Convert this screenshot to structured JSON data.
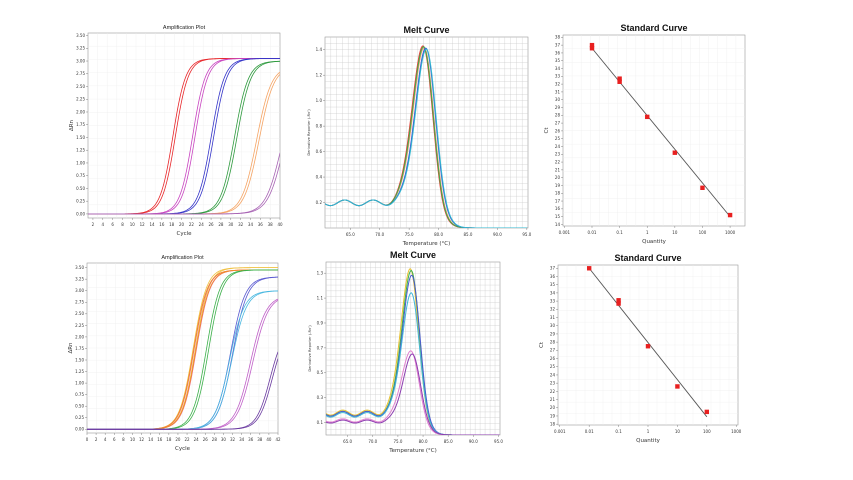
{
  "chart_data": [
    {
      "type": "line",
      "kind": "amplification",
      "title": "Amplification Plot",
      "xlabel": "Cycle",
      "ylabel": "ΔRn",
      "xlim": [
        1,
        40
      ],
      "ylim": [
        -0.08,
        3.55
      ],
      "xticks": [
        2,
        4,
        6,
        8,
        10,
        12,
        14,
        16,
        18,
        20,
        22,
        24,
        26,
        28,
        30,
        32,
        34,
        36,
        38,
        40
      ],
      "yticks": [
        0,
        0.25,
        0.5,
        0.75,
        1,
        1.25,
        1.5,
        1.75,
        2,
        2.25,
        2.5,
        2.75,
        3,
        3.25,
        3.5
      ],
      "ytick_labels": [
        "0.00",
        "0.25",
        "0.50",
        "0.75",
        "1.00",
        "1.25",
        "1.50",
        "1.75",
        "2.00",
        "2.25",
        "2.50",
        "2.75",
        "3.00",
        "3.25",
        "3.50"
      ],
      "grid": true,
      "series": [
        {
          "color": "#e8262a",
          "midpoint_cycle": 18.5,
          "plateau": 3.05,
          "slope": 1.3
        },
        {
          "color": "#c844c0",
          "midpoint_cycle": 22.5,
          "plateau": 3.05,
          "slope": 1.3
        },
        {
          "color": "#3434c8",
          "midpoint_cycle": 26.3,
          "plateau": 3.05,
          "slope": 1.35
        },
        {
          "color": "#2e9a3e",
          "midpoint_cycle": 31.0,
          "plateau": 3.0,
          "slope": 1.4
        },
        {
          "color": "#f5a464",
          "midpoint_cycle": 35.5,
          "plateau": 2.9,
          "slope": 1.5
        },
        {
          "color": "#a864b4",
          "midpoint_cycle": 40.5,
          "plateau": 2.6,
          "slope": 1.6
        }
      ]
    },
    {
      "type": "line",
      "kind": "melt",
      "title": "Melt Curve",
      "xlabel": "Temperature (°C)",
      "ylabel": "Derivative Reporter (-Rn')",
      "xlim": [
        60.7,
        95.2
      ],
      "ylim": [
        0,
        1.5
      ],
      "xticks": [
        65,
        70,
        75,
        80,
        85,
        90,
        95
      ],
      "xtick_labels": [
        "65.0",
        "70.0",
        "75.0",
        "80.0",
        "85.0",
        "90.0",
        "95.0"
      ],
      "yticks": [
        0.2,
        0.4,
        0.6,
        0.8,
        1.0,
        1.2,
        1.4
      ],
      "ytick_labels": [
        "0.2",
        "0.4",
        "0.6",
        "0.8",
        "1.0",
        "1.2",
        "1.4"
      ],
      "grid": true,
      "series": [
        {
          "color": "#e8403a",
          "tm": 77.3,
          "peak": 1.46,
          "baseline": 0.22
        },
        {
          "color": "#f0a070",
          "tm": 77.5,
          "peak": 1.44,
          "baseline": 0.22
        },
        {
          "color": "#3cae4a",
          "tm": 77.4,
          "peak": 1.45,
          "baseline": 0.22
        },
        {
          "color": "#3a52d0",
          "tm": 77.8,
          "peak": 1.43,
          "baseline": 0.22
        },
        {
          "color": "#30b8d0",
          "tm": 77.9,
          "peak": 1.42,
          "baseline": 0.22
        }
      ]
    },
    {
      "type": "scatter",
      "kind": "standard",
      "title": "Standard Curve",
      "xlabel": "Quantity",
      "ylabel": "Ct",
      "xscale": "log",
      "xlim_log10": [
        -3.05,
        3.54
      ],
      "ylim": [
        13.8,
        38.3
      ],
      "xticks": [
        0.001,
        0.01,
        0.1,
        1,
        10,
        100,
        1000
      ],
      "xtick_labels": [
        "0.001",
        "0.01",
        "0.1",
        "1",
        "10",
        "100",
        "1000"
      ],
      "yticks": [
        14,
        15,
        16,
        17,
        18,
        19,
        20,
        21,
        22,
        23,
        24,
        25,
        26,
        27,
        28,
        29,
        30,
        31,
        32,
        33,
        34,
        35,
        36,
        37,
        38
      ],
      "grid": true,
      "points": [
        [
          0.01,
          37.0
        ],
        [
          0.01,
          36.6
        ],
        [
          0.1,
          32.7
        ],
        [
          0.1,
          32.3
        ],
        [
          1,
          27.8
        ],
        [
          10,
          23.2
        ],
        [
          100,
          18.7
        ],
        [
          1000,
          15.2
        ]
      ],
      "fit_line": [
        [
          0.01,
          36.6
        ],
        [
          1000,
          15.0
        ]
      ]
    },
    {
      "type": "line",
      "kind": "amplification",
      "title": "Amplification Plot",
      "xlabel": "Cycle",
      "ylabel": "ΔRn",
      "xlim": [
        0,
        42
      ],
      "ylim": [
        -0.08,
        3.6
      ],
      "xticks": [
        0,
        2,
        4,
        6,
        8,
        10,
        12,
        14,
        16,
        18,
        20,
        22,
        24,
        26,
        28,
        30,
        32,
        34,
        36,
        38,
        40,
        42
      ],
      "yticks": [
        0,
        0.25,
        0.5,
        0.75,
        1,
        1.25,
        1.5,
        1.75,
        2,
        2.25,
        2.5,
        2.75,
        3,
        3.25,
        3.5
      ],
      "ytick_labels": [
        "0.00",
        "0.25",
        "0.50",
        "0.75",
        "1.00",
        "1.25",
        "1.50",
        "1.75",
        "2.00",
        "2.25",
        "2.50",
        "2.75",
        "3.00",
        "3.25",
        "3.50"
      ],
      "grid": true,
      "series": [
        {
          "color": "#f0c040",
          "midpoint_cycle": 23.6,
          "plateau": 3.5,
          "slope": 1.5
        },
        {
          "color": "#e86a8a",
          "midpoint_cycle": 23.8,
          "plateau": 3.45,
          "slope": 1.5
        },
        {
          "color": "#f08a2a",
          "midpoint_cycle": 23.7,
          "plateau": 3.45,
          "slope": 1.5
        },
        {
          "color": "#3cb04a",
          "midpoint_cycle": 26.5,
          "plateau": 3.45,
          "slope": 1.5
        },
        {
          "color": "#5a5ad0",
          "midpoint_cycle": 31.8,
          "plateau": 3.3,
          "slope": 1.6
        },
        {
          "color": "#4ab8e0",
          "midpoint_cycle": 31.6,
          "plateau": 3.0,
          "slope": 1.6
        },
        {
          "color": "#c060c8",
          "midpoint_cycle": 36.2,
          "plateau": 2.9,
          "slope": 1.7
        },
        {
          "color": "#6a3aa0",
          "midpoint_cycle": 40.5,
          "plateau": 2.2,
          "slope": 1.5
        }
      ]
    },
    {
      "type": "line",
      "kind": "melt",
      "title": "Melt Curve",
      "xlabel": "Temperature (°C)",
      "ylabel": "Derivative Reporter (-Rn')",
      "xlim": [
        60.7,
        95.3
      ],
      "ylim": [
        0,
        1.39
      ],
      "xticks": [
        65,
        70,
        75,
        80,
        85,
        90,
        95
      ],
      "xtick_labels": [
        "65.0",
        "70.0",
        "75.0",
        "80.0",
        "85.0",
        "90.0",
        "95.0"
      ],
      "yticks": [
        0.1,
        0.3,
        0.5,
        0.7,
        0.9,
        1.1,
        1.3
      ],
      "ytick_labels": [
        "0.1",
        "0.3",
        "0.5",
        "0.7",
        "0.9",
        "1.1",
        "1.3"
      ],
      "grid": true,
      "series": [
        {
          "color": "#e8c030",
          "tm": 77.4,
          "peak": 1.36,
          "baseline": 0.2
        },
        {
          "color": "#3cb04a",
          "tm": 77.6,
          "peak": 1.34,
          "baseline": 0.19
        },
        {
          "color": "#4a5ad0",
          "tm": 77.7,
          "peak": 1.3,
          "baseline": 0.19
        },
        {
          "color": "#40b8d8",
          "tm": 77.6,
          "peak": 1.16,
          "baseline": 0.18
        },
        {
          "color": "#e080d0",
          "tm": 77.5,
          "peak": 0.69,
          "baseline": 0.13
        },
        {
          "color": "#8c3cb0",
          "tm": 77.8,
          "peak": 0.66,
          "baseline": 0.12
        }
      ]
    },
    {
      "type": "scatter",
      "kind": "standard",
      "title": "Standard Curve",
      "xlabel": "Quantity",
      "ylabel": "Ct",
      "xscale": "log",
      "xlim_log10": [
        -3.06,
        3.06
      ],
      "ylim": [
        17.9,
        37.4
      ],
      "xticks": [
        0.001,
        0.01,
        0.1,
        1,
        10,
        100,
        1000
      ],
      "xtick_labels": [
        "0.001",
        "0.01",
        "0.1",
        "1",
        "10",
        "100",
        "1000"
      ],
      "yticks": [
        18,
        19,
        20,
        21,
        22,
        23,
        24,
        25,
        26,
        27,
        28,
        29,
        30,
        31,
        32,
        33,
        34,
        35,
        36,
        37
      ],
      "grid": true,
      "points": [
        [
          0.01,
          37.0
        ],
        [
          0.1,
          33.1
        ],
        [
          0.1,
          32.7
        ],
        [
          1,
          27.5
        ],
        [
          10,
          22.6
        ],
        [
          100,
          19.5
        ]
      ],
      "fit_line": [
        [
          0.01,
          37.0
        ],
        [
          100,
          18.9
        ]
      ]
    }
  ]
}
